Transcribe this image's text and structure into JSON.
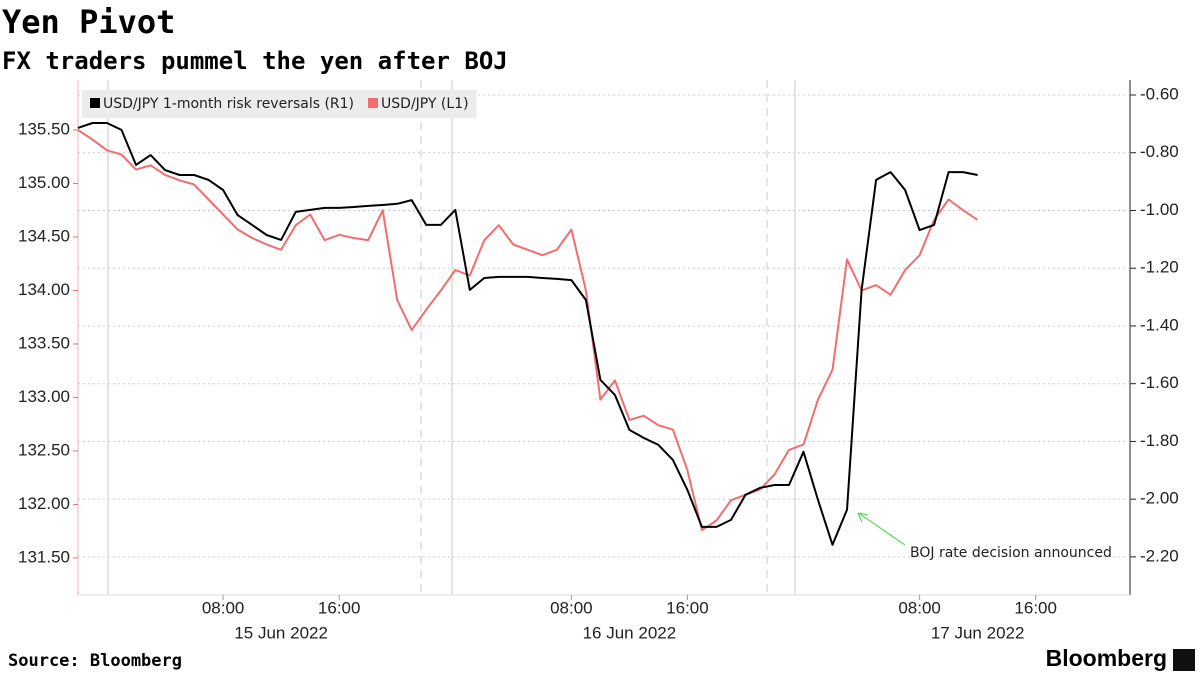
{
  "chart_data": {
    "type": "line",
    "title": "Yen Pivot",
    "subtitle": "FX traders pummel the yen after BOJ",
    "source": "Source: Bloomberg",
    "brand": "Bloomberg",
    "annotation": "BOJ rate decision announced",
    "x": [
      "2022-06-14T22:00",
      "2022-06-14T23:00",
      "2022-06-15T00:00",
      "2022-06-15T01:00",
      "2022-06-15T02:00",
      "2022-06-15T03:00",
      "2022-06-15T04:00",
      "2022-06-15T05:00",
      "2022-06-15T06:00",
      "2022-06-15T07:00",
      "2022-06-15T08:00",
      "2022-06-15T09:00",
      "2022-06-15T10:00",
      "2022-06-15T11:00",
      "2022-06-15T12:00",
      "2022-06-15T13:00",
      "2022-06-15T14:00",
      "2022-06-15T15:00",
      "2022-06-15T16:00",
      "2022-06-15T17:00",
      "2022-06-15T18:00",
      "2022-06-15T19:00",
      "2022-06-15T20:00",
      "2022-06-15T21:00",
      "2022-06-15T22:00",
      "2022-06-15T23:00",
      "2022-06-16T00:00",
      "2022-06-16T01:00",
      "2022-06-16T02:00",
      "2022-06-16T03:00",
      "2022-06-16T04:00",
      "2022-06-16T05:00",
      "2022-06-16T06:00",
      "2022-06-16T07:00",
      "2022-06-16T08:00",
      "2022-06-16T09:00",
      "2022-06-16T10:00",
      "2022-06-16T11:00",
      "2022-06-16T12:00",
      "2022-06-16T13:00",
      "2022-06-16T14:00",
      "2022-06-16T15:00",
      "2022-06-16T16:00",
      "2022-06-16T17:00",
      "2022-06-16T18:00",
      "2022-06-16T19:00",
      "2022-06-16T20:00",
      "2022-06-16T21:00",
      "2022-06-16T22:00",
      "2022-06-16T23:00",
      "2022-06-17T00:00",
      "2022-06-17T01:00",
      "2022-06-17T02:00",
      "2022-06-17T03:00",
      "2022-06-17T04:00",
      "2022-06-17T05:00",
      "2022-06-17T06:00",
      "2022-06-17T07:00",
      "2022-06-17T08:00",
      "2022-06-17T09:00",
      "2022-06-17T10:00",
      "2022-06-17T11:00",
      "2022-06-17T12:00"
    ],
    "series": [
      {
        "name": "USD/JPY 1-month risk reversals (R1)",
        "color": "#000000",
        "axis": "y2",
        "values": [
          -0.714,
          -0.697,
          -0.697,
          -0.721,
          -0.842,
          -0.808,
          -0.86,
          -0.877,
          -0.877,
          -0.894,
          -0.929,
          -1.016,
          -1.05,
          -1.085,
          -1.102,
          -1.005,
          -0.998,
          -0.991,
          -0.991,
          -0.988,
          -0.984,
          -0.981,
          -0.977,
          -0.964,
          -1.05,
          -1.05,
          -0.998,
          -1.275,
          -1.234,
          -1.23,
          -1.23,
          -1.23,
          -1.234,
          -1.237,
          -1.241,
          -1.31,
          -1.587,
          -1.639,
          -1.76,
          -1.788,
          -1.812,
          -1.864,
          -1.968,
          -2.096,
          -2.096,
          -2.072,
          -1.985,
          -1.961,
          -1.951,
          -1.951,
          -1.836,
          -2.003,
          -2.158,
          -2.037,
          -1.275,
          -0.894,
          -0.867,
          -0.929,
          -1.068,
          -1.05,
          -0.867,
          -0.867,
          -0.877
        ]
      },
      {
        "name": "USD/JPY (L1)",
        "color": "#f26d6d",
        "axis": "y",
        "values": [
          135.5,
          135.41,
          135.31,
          135.27,
          135.13,
          135.17,
          135.08,
          135.03,
          134.99,
          134.85,
          134.71,
          134.57,
          134.49,
          134.43,
          134.38,
          134.61,
          134.71,
          134.47,
          134.52,
          134.49,
          134.47,
          134.75,
          133.91,
          133.63,
          133.82,
          134.0,
          134.19,
          134.14,
          134.47,
          134.61,
          134.43,
          134.38,
          134.33,
          134.38,
          134.57,
          134.0,
          132.98,
          133.16,
          132.79,
          132.83,
          132.74,
          132.7,
          132.32,
          131.76,
          131.85,
          132.04,
          132.09,
          132.14,
          132.28,
          132.51,
          132.56,
          132.98,
          133.26,
          134.29,
          134.0,
          134.05,
          133.96,
          134.19,
          134.33,
          134.66,
          134.85,
          134.75,
          134.66
        ]
      }
    ],
    "xlim": [
      "2022-06-14T22:00",
      "2022-06-17T22:30"
    ],
    "xticks": [
      {
        "value": "2022-06-15T08:00",
        "label": "08:00"
      },
      {
        "value": "2022-06-15T16:00",
        "label": "16:00"
      },
      {
        "value": "2022-06-16T08:00",
        "label": "08:00"
      },
      {
        "value": "2022-06-16T16:00",
        "label": "16:00"
      },
      {
        "value": "2022-06-17T08:00",
        "label": "08:00"
      },
      {
        "value": "2022-06-17T16:00",
        "label": "16:00"
      }
    ],
    "xtick_dates": [
      {
        "value": "2022-06-15T12:00",
        "label": "15 Jun 2022"
      },
      {
        "value": "2022-06-16T12:00",
        "label": "16 Jun 2022"
      },
      {
        "value": "2022-06-17T12:00",
        "label": "17 Jun 2022"
      }
    ],
    "ylim": [
      131.154,
      135.967
    ],
    "yticks": [
      {
        "value": 131.5,
        "label": "131.50"
      },
      {
        "value": 132,
        "label": "132.00"
      },
      {
        "value": 132.5,
        "label": "132.50"
      },
      {
        "value": 133,
        "label": "133.00"
      },
      {
        "value": 133.5,
        "label": "133.50"
      },
      {
        "value": 134,
        "label": "134.00"
      },
      {
        "value": 134.5,
        "label": "134.50"
      },
      {
        "value": 135,
        "label": "135.00"
      },
      {
        "value": 135.5,
        "label": "135.50"
      }
    ],
    "y2lim": [
      -2.332,
      -0.548
    ],
    "y2ticks": [
      {
        "value": -2.2,
        "label": "-2.20"
      },
      {
        "value": -2.0,
        "label": "-2.00"
      },
      {
        "value": -1.8,
        "label": "-1.80"
      },
      {
        "value": -1.6,
        "label": "-1.60"
      },
      {
        "value": -1.4,
        "label": "-1.40"
      },
      {
        "value": -1.2,
        "label": "-1.20"
      },
      {
        "value": -1.0,
        "label": "-1.00"
      },
      {
        "value": -0.8,
        "label": "-0.80"
      },
      {
        "value": -0.6,
        "label": "-0.60"
      }
    ],
    "grid": "y2",
    "legend": "top-left"
  }
}
